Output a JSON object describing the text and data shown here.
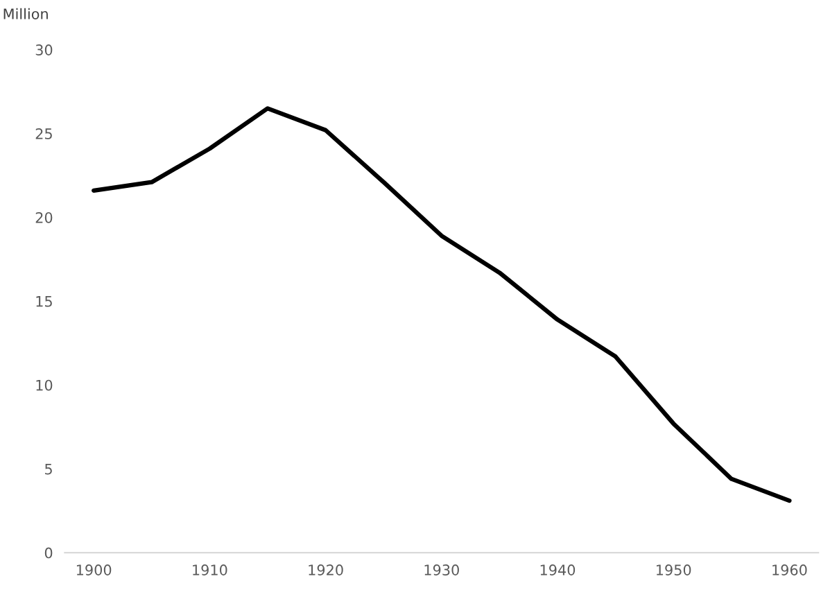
{
  "chart_data": {
    "type": "line",
    "ylabel": "Million",
    "x": [
      1900,
      1905,
      1910,
      1915,
      1920,
      1925,
      1930,
      1935,
      1940,
      1945,
      1950,
      1955,
      1960
    ],
    "series": [
      {
        "color": "#000000",
        "values": [
          21.6,
          22.1,
          24.1,
          26.5,
          25.2,
          22.1,
          18.9,
          16.7,
          13.9,
          11.7,
          7.7,
          4.4,
          3.1
        ]
      }
    ],
    "xlim": [
      1897.5,
      1962.5
    ],
    "xticks": [
      1900,
      1910,
      1920,
      1930,
      1940,
      1950,
      1960
    ],
    "ylim": [
      0,
      30
    ],
    "yticks": [
      0,
      5,
      10,
      15,
      20,
      25,
      30
    ],
    "grid": false,
    "legend": false,
    "marker": "none",
    "line_style": "solid"
  }
}
